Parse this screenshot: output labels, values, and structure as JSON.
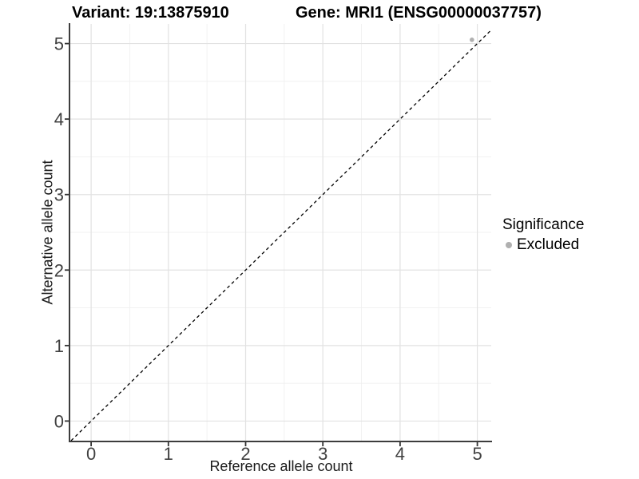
{
  "titles": {
    "variant": "Variant: 19:13875910",
    "gene": "Gene: MRI1 (ENSG00000037757)"
  },
  "chart_data": {
    "type": "scatter",
    "xlabel": "Reference allele count",
    "ylabel": "Alternative allele count",
    "xlim": [
      -0.27,
      5.18
    ],
    "ylim": [
      -0.26,
      5.26
    ],
    "xticks": [
      0,
      1,
      2,
      3,
      4,
      5
    ],
    "yticks": [
      0,
      1,
      2,
      3,
      4,
      5
    ],
    "minor_x": [
      0.5,
      1.5,
      2.5,
      3.5,
      4.5
    ],
    "minor_y": [
      0.5,
      1.5,
      2.5,
      3.5,
      4.5
    ],
    "grid": true,
    "points": [
      {
        "x": 4.93,
        "y": 5.05,
        "significance": "Excluded"
      }
    ],
    "reference_line": {
      "type": "identity",
      "slope": 1,
      "intercept": 0,
      "style": "dashed",
      "color": "#000000"
    },
    "legend": {
      "title": "Significance",
      "position": "right",
      "entries": [
        {
          "label": "Excluded",
          "color": "#b0b0b0"
        }
      ]
    },
    "style": {
      "point_color": "#b0b0b0",
      "grid_major_color": "#e2e2e2",
      "grid_minor_color": "#f0f0f0",
      "axis_line_color": "#3d3d3d",
      "tick_color": "#333333",
      "tick_label_color": "#404040",
      "background": "#ffffff"
    }
  }
}
